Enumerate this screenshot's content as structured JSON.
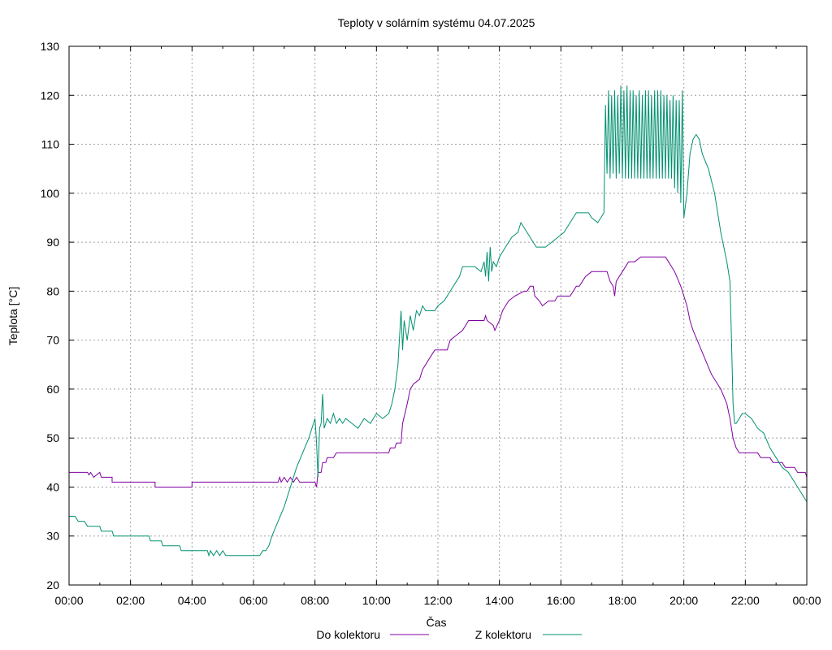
{
  "chart_data": {
    "type": "line",
    "title": "Teploty v solárním systému 04.07.2025",
    "xlabel": "Čas",
    "ylabel": "Teplota [°C]",
    "xlim": [
      0,
      24
    ],
    "ylim": [
      20,
      130
    ],
    "x_ticks": [
      "00:00",
      "02:00",
      "04:00",
      "06:00",
      "08:00",
      "10:00",
      "12:00",
      "14:00",
      "16:00",
      "18:00",
      "20:00",
      "22:00",
      "00:00"
    ],
    "y_ticks": [
      20,
      30,
      40,
      50,
      60,
      70,
      80,
      90,
      100,
      110,
      120,
      130
    ],
    "grid": true,
    "legend_position": "bottom",
    "series": [
      {
        "name": "Do kolektoru",
        "color": "#8000a0",
        "points": [
          [
            0,
            43
          ],
          [
            0.6,
            43
          ],
          [
            0.65,
            42.5
          ],
          [
            0.7,
            43
          ],
          [
            0.8,
            42
          ],
          [
            1.0,
            43
          ],
          [
            1.05,
            42
          ],
          [
            1.4,
            42
          ],
          [
            1.4,
            41
          ],
          [
            2.8,
            41
          ],
          [
            2.8,
            40
          ],
          [
            4.0,
            40
          ],
          [
            4.0,
            41
          ],
          [
            6.8,
            41
          ],
          [
            6.85,
            42
          ],
          [
            6.9,
            41
          ],
          [
            7.0,
            42
          ],
          [
            7.1,
            41
          ],
          [
            7.2,
            42
          ],
          [
            7.3,
            41
          ],
          [
            7.4,
            42
          ],
          [
            7.5,
            41
          ],
          [
            8.0,
            41
          ],
          [
            8.05,
            40
          ],
          [
            8.1,
            43
          ],
          [
            8.2,
            43
          ],
          [
            8.25,
            45
          ],
          [
            8.35,
            45
          ],
          [
            8.4,
            46
          ],
          [
            8.6,
            46
          ],
          [
            8.7,
            47
          ],
          [
            10.4,
            47
          ],
          [
            10.45,
            48
          ],
          [
            10.6,
            48
          ],
          [
            10.65,
            49
          ],
          [
            10.8,
            49
          ],
          [
            10.85,
            53
          ],
          [
            11.0,
            57
          ],
          [
            11.1,
            60
          ],
          [
            11.2,
            61
          ],
          [
            11.4,
            62
          ],
          [
            11.5,
            64
          ],
          [
            11.7,
            66
          ],
          [
            11.8,
            67
          ],
          [
            11.9,
            68
          ],
          [
            12.3,
            68
          ],
          [
            12.4,
            70
          ],
          [
            12.6,
            71
          ],
          [
            12.8,
            72
          ],
          [
            13.0,
            74
          ],
          [
            13.5,
            74
          ],
          [
            13.55,
            75
          ],
          [
            13.6,
            74
          ],
          [
            13.8,
            73
          ],
          [
            13.85,
            72
          ],
          [
            14.0,
            74
          ],
          [
            14.1,
            76
          ],
          [
            14.2,
            77
          ],
          [
            14.3,
            78
          ],
          [
            14.5,
            79
          ],
          [
            14.8,
            80
          ],
          [
            14.9,
            80
          ],
          [
            15.0,
            81
          ],
          [
            15.1,
            81
          ],
          [
            15.15,
            79
          ],
          [
            15.3,
            78
          ],
          [
            15.4,
            77
          ],
          [
            15.6,
            78
          ],
          [
            15.8,
            78
          ],
          [
            15.9,
            79
          ],
          [
            16.3,
            79
          ],
          [
            16.4,
            80
          ],
          [
            16.5,
            81
          ],
          [
            16.6,
            81
          ],
          [
            16.7,
            82
          ],
          [
            16.8,
            83
          ],
          [
            17.0,
            84
          ],
          [
            17.4,
            84
          ],
          [
            17.5,
            84
          ],
          [
            17.55,
            83
          ],
          [
            17.6,
            82
          ],
          [
            17.7,
            81
          ],
          [
            17.75,
            79
          ],
          [
            17.8,
            82
          ],
          [
            18.0,
            84
          ],
          [
            18.2,
            86
          ],
          [
            18.4,
            86
          ],
          [
            18.6,
            87
          ],
          [
            19.0,
            87
          ],
          [
            19.3,
            87
          ],
          [
            19.4,
            87
          ],
          [
            19.5,
            86
          ],
          [
            19.6,
            85
          ],
          [
            19.7,
            84
          ],
          [
            19.9,
            81
          ],
          [
            20.0,
            79
          ],
          [
            20.1,
            77
          ],
          [
            20.2,
            74
          ],
          [
            20.3,
            72
          ],
          [
            20.5,
            69
          ],
          [
            20.7,
            66
          ],
          [
            20.9,
            63
          ],
          [
            21.0,
            62
          ],
          [
            21.2,
            60
          ],
          [
            21.4,
            57
          ],
          [
            21.5,
            54
          ],
          [
            21.6,
            50
          ],
          [
            21.7,
            48
          ],
          [
            21.8,
            47
          ],
          [
            22.4,
            47
          ],
          [
            22.5,
            46
          ],
          [
            22.8,
            46
          ],
          [
            22.9,
            45
          ],
          [
            23.2,
            45
          ],
          [
            23.3,
            44
          ],
          [
            23.6,
            44
          ],
          [
            23.7,
            43
          ],
          [
            23.95,
            43
          ],
          [
            24.0,
            42
          ]
        ]
      },
      {
        "name": "Z kolektoru",
        "color": "#009070",
        "points": [
          [
            0,
            34
          ],
          [
            0.2,
            34
          ],
          [
            0.3,
            33
          ],
          [
            0.5,
            33
          ],
          [
            0.6,
            32
          ],
          [
            1.0,
            32
          ],
          [
            1.05,
            31
          ],
          [
            1.4,
            31
          ],
          [
            1.45,
            30
          ],
          [
            2.6,
            30
          ],
          [
            2.65,
            29
          ],
          [
            3.0,
            29
          ],
          [
            3.05,
            28
          ],
          [
            3.6,
            28
          ],
          [
            3.65,
            27
          ],
          [
            4.5,
            27
          ],
          [
            4.55,
            26
          ],
          [
            4.6,
            27
          ],
          [
            4.7,
            26
          ],
          [
            4.8,
            27
          ],
          [
            4.9,
            26
          ],
          [
            5.0,
            27
          ],
          [
            5.1,
            26
          ],
          [
            6.0,
            26
          ],
          [
            6.05,
            26
          ],
          [
            6.2,
            26
          ],
          [
            6.3,
            27
          ],
          [
            6.4,
            27
          ],
          [
            6.5,
            28
          ],
          [
            6.6,
            30
          ],
          [
            6.8,
            33
          ],
          [
            7.0,
            36
          ],
          [
            7.2,
            40
          ],
          [
            7.4,
            44
          ],
          [
            7.6,
            47
          ],
          [
            7.8,
            50
          ],
          [
            7.9,
            52
          ],
          [
            8.0,
            54
          ],
          [
            8.05,
            49
          ],
          [
            8.1,
            42
          ],
          [
            8.15,
            52
          ],
          [
            8.2,
            53
          ],
          [
            8.25,
            59
          ],
          [
            8.3,
            52
          ],
          [
            8.4,
            54
          ],
          [
            8.5,
            53
          ],
          [
            8.6,
            55
          ],
          [
            8.7,
            53
          ],
          [
            8.8,
            54
          ],
          [
            8.9,
            53
          ],
          [
            9.0,
            54
          ],
          [
            9.2,
            53
          ],
          [
            9.4,
            52
          ],
          [
            9.6,
            54
          ],
          [
            9.8,
            53
          ],
          [
            10.0,
            55
          ],
          [
            10.2,
            54
          ],
          [
            10.4,
            55
          ],
          [
            10.5,
            57
          ],
          [
            10.6,
            60
          ],
          [
            10.7,
            65
          ],
          [
            10.8,
            76
          ],
          [
            10.85,
            68
          ],
          [
            10.9,
            74
          ],
          [
            11.0,
            70
          ],
          [
            11.1,
            75
          ],
          [
            11.2,
            72
          ],
          [
            11.3,
            76
          ],
          [
            11.4,
            75
          ],
          [
            11.5,
            77
          ],
          [
            11.6,
            76
          ],
          [
            11.9,
            76
          ],
          [
            12.0,
            77
          ],
          [
            12.2,
            78
          ],
          [
            12.4,
            80
          ],
          [
            12.6,
            82
          ],
          [
            12.7,
            83
          ],
          [
            12.8,
            85
          ],
          [
            13.2,
            85
          ],
          [
            13.4,
            84
          ],
          [
            13.5,
            86
          ],
          [
            13.55,
            83
          ],
          [
            13.6,
            88
          ],
          [
            13.65,
            82
          ],
          [
            13.7,
            89
          ],
          [
            13.75,
            84
          ],
          [
            13.8,
            86
          ],
          [
            13.9,
            85
          ],
          [
            14.0,
            87
          ],
          [
            14.1,
            88
          ],
          [
            14.2,
            89
          ],
          [
            14.4,
            91
          ],
          [
            14.6,
            92
          ],
          [
            14.7,
            94
          ],
          [
            14.8,
            93
          ],
          [
            15.0,
            91
          ],
          [
            15.2,
            89
          ],
          [
            15.5,
            89
          ],
          [
            15.7,
            90
          ],
          [
            15.9,
            91
          ],
          [
            16.1,
            92
          ],
          [
            16.3,
            94
          ],
          [
            16.5,
            96
          ],
          [
            16.7,
            96
          ],
          [
            16.9,
            96
          ],
          [
            17.0,
            95
          ],
          [
            17.2,
            94
          ],
          [
            17.4,
            96
          ],
          [
            17.45,
            118
          ],
          [
            17.5,
            104
          ],
          [
            17.55,
            121
          ],
          [
            17.6,
            103
          ],
          [
            17.65,
            120
          ],
          [
            17.7,
            104
          ],
          [
            17.75,
            121
          ],
          [
            17.8,
            103
          ],
          [
            17.85,
            120
          ],
          [
            17.9,
            104
          ],
          [
            17.95,
            122
          ],
          [
            18.0,
            103
          ],
          [
            18.05,
            121
          ],
          [
            18.1,
            103
          ],
          [
            18.15,
            122
          ],
          [
            18.2,
            103
          ],
          [
            18.25,
            121
          ],
          [
            18.3,
            103
          ],
          [
            18.35,
            121
          ],
          [
            18.4,
            103
          ],
          [
            18.45,
            120
          ],
          [
            18.5,
            103
          ],
          [
            18.55,
            121
          ],
          [
            18.6,
            103
          ],
          [
            18.65,
            120
          ],
          [
            18.7,
            103
          ],
          [
            18.75,
            121
          ],
          [
            18.8,
            103
          ],
          [
            18.85,
            121
          ],
          [
            18.9,
            103
          ],
          [
            18.95,
            120
          ],
          [
            19.0,
            103
          ],
          [
            19.05,
            121
          ],
          [
            19.1,
            103
          ],
          [
            19.15,
            121
          ],
          [
            19.2,
            103
          ],
          [
            19.25,
            121
          ],
          [
            19.3,
            103
          ],
          [
            19.35,
            120
          ],
          [
            19.4,
            103
          ],
          [
            19.45,
            120
          ],
          [
            19.5,
            103
          ],
          [
            19.55,
            119
          ],
          [
            19.6,
            103
          ],
          [
            19.65,
            120
          ],
          [
            19.7,
            101
          ],
          [
            19.75,
            119
          ],
          [
            19.8,
            100
          ],
          [
            19.85,
            119
          ],
          [
            19.9,
            98
          ],
          [
            19.95,
            121
          ],
          [
            20.0,
            95
          ],
          [
            20.1,
            100
          ],
          [
            20.2,
            108
          ],
          [
            20.3,
            111
          ],
          [
            20.4,
            112
          ],
          [
            20.5,
            111
          ],
          [
            20.6,
            108
          ],
          [
            20.8,
            105
          ],
          [
            21.0,
            100
          ],
          [
            21.2,
            92
          ],
          [
            21.4,
            86
          ],
          [
            21.5,
            82
          ],
          [
            21.55,
            70
          ],
          [
            21.6,
            57
          ],
          [
            21.65,
            53
          ],
          [
            21.7,
            53
          ],
          [
            21.8,
            54
          ],
          [
            21.9,
            55
          ],
          [
            22.0,
            55
          ],
          [
            22.2,
            54
          ],
          [
            22.4,
            52
          ],
          [
            22.6,
            51
          ],
          [
            22.8,
            48
          ],
          [
            23.0,
            46
          ],
          [
            23.2,
            44
          ],
          [
            23.4,
            43
          ],
          [
            23.6,
            41
          ],
          [
            23.8,
            39
          ],
          [
            24.0,
            37
          ]
        ]
      }
    ]
  }
}
